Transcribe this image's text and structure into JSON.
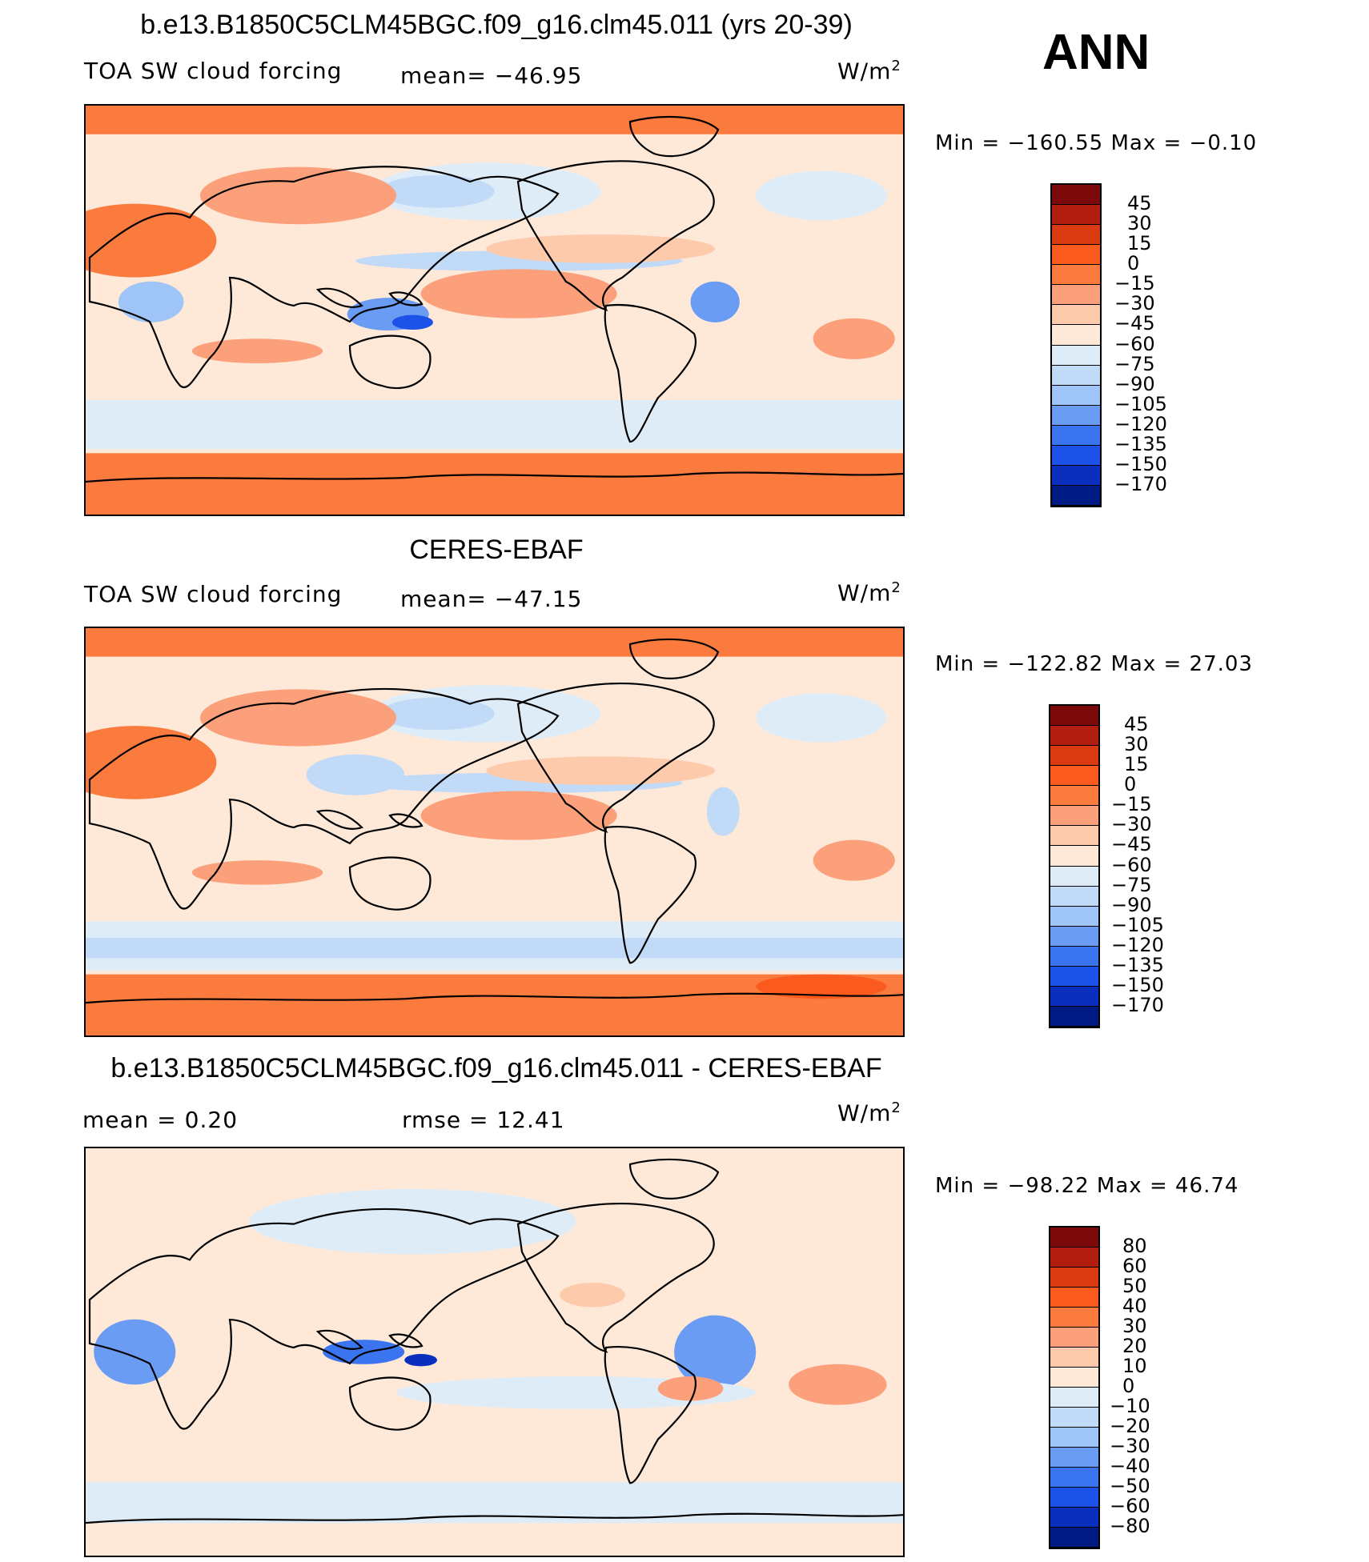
{
  "season": "ANN",
  "colors": {
    "warm": [
      "#7d0a0a",
      "#b11e10",
      "#da3a12",
      "#fa5a1e",
      "#fb7a3e",
      "#fba07a",
      "#fdcbac",
      "#fee9d9"
    ],
    "cool": [
      "#deecf8",
      "#c0daf8",
      "#9ec4f8",
      "#6a9cf4",
      "#3a74ee",
      "#1d52e8",
      "#0a2fbe",
      "#001a84"
    ],
    "coast": "#000000"
  },
  "panels": [
    {
      "title": "b.e13.B1850C5CLM45BGC.f09_g16.clm45.011 (yrs 20-39)",
      "left_label": "TOA SW cloud forcing",
      "mid_label": "mean=  −46.95",
      "units": "W/m",
      "units_sup": "2",
      "minmax": "Min  =  −160.55  Max  =    −0.10",
      "colorbar_ticks": [
        "45",
        "30",
        "15",
        "0",
        "−15",
        "−30",
        "−45",
        "−60",
        "−75",
        "−90",
        "−105",
        "−120",
        "−135",
        "−150",
        "−170"
      ]
    },
    {
      "title": "CERES-EBAF",
      "left_label": "TOA SW cloud forcing",
      "mid_label": "mean=  −47.15",
      "units": "W/m",
      "units_sup": "2",
      "minmax": "Min  =  −122.82  Max  =    27.03",
      "colorbar_ticks": [
        "45",
        "30",
        "15",
        "0",
        "−15",
        "−30",
        "−45",
        "−60",
        "−75",
        "−90",
        "−105",
        "−120",
        "−135",
        "−150",
        "−170"
      ]
    },
    {
      "title": "b.e13.B1850C5CLM45BGC.f09_g16.clm45.011 - CERES-EBAF",
      "left_label": "mean  =     0.20",
      "mid_label": "rmse  =    12.41",
      "units": "W/m",
      "units_sup": "2",
      "minmax": "Min  =  −98.22  Max  =    46.74",
      "colorbar_ticks": [
        "80",
        "60",
        "50",
        "40",
        "30",
        "20",
        "10",
        "0",
        "−10",
        "−20",
        "−30",
        "−40",
        "−50",
        "−60",
        "−80"
      ]
    }
  ]
}
